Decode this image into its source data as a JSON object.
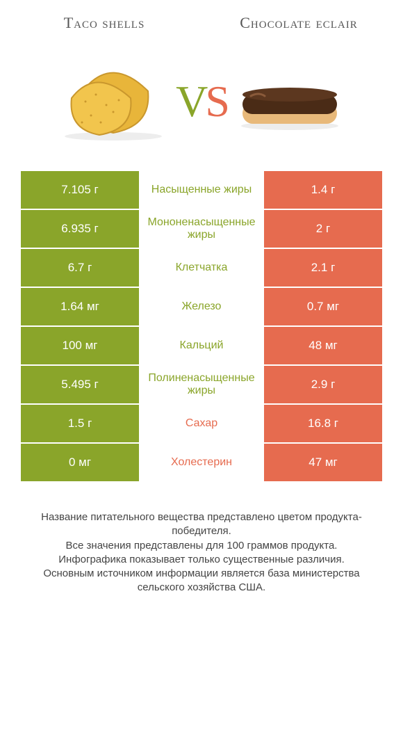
{
  "colors": {
    "left": "#8aa52a",
    "right": "#e66b4f",
    "text": "#333333",
    "bg": "#ffffff"
  },
  "header": {
    "left_title": "Taco shells",
    "right_title": "Chocolate eclair"
  },
  "vs": {
    "v": "V",
    "s": "S"
  },
  "table": {
    "label_fontsize": 16,
    "value_fontsize": 17,
    "rows": [
      {
        "left": "7.105 г",
        "label": "Насыщенные жиры",
        "right": "1.4 г",
        "winner": "left"
      },
      {
        "left": "6.935 г",
        "label": "Мононенасыщенные жиры",
        "right": "2 г",
        "winner": "left"
      },
      {
        "left": "6.7 г",
        "label": "Клетчатка",
        "right": "2.1 г",
        "winner": "left"
      },
      {
        "left": "1.64 мг",
        "label": "Железо",
        "right": "0.7 мг",
        "winner": "left"
      },
      {
        "left": "100 мг",
        "label": "Кальций",
        "right": "48 мг",
        "winner": "left"
      },
      {
        "left": "5.495 г",
        "label": "Полиненасыщенные жиры",
        "right": "2.9 г",
        "winner": "left"
      },
      {
        "left": "1.5 г",
        "label": "Сахар",
        "right": "16.8 г",
        "winner": "right"
      },
      {
        "left": "0 мг",
        "label": "Холестерин",
        "right": "47 мг",
        "winner": "right"
      }
    ]
  },
  "footer": {
    "line1": "Название питательного вещества представлено цветом продукта-победителя.",
    "line2": "Все значения представлены для 100 граммов продукта.",
    "line3": "Инфографика показывает только существенные различия.",
    "line4": "Основным источником информации является база министерства сельского хозяйства США."
  }
}
